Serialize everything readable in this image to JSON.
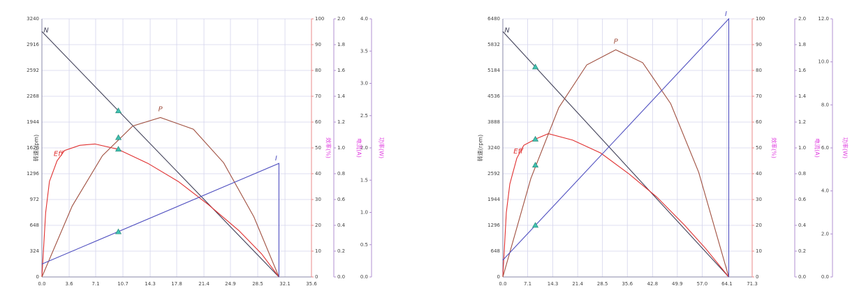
{
  "chart_data": [
    {
      "type": "line",
      "xlim": [
        0,
        35.6
      ],
      "xticks": [
        {
          "value": 0,
          "label": "0.0"
        },
        3.6,
        7.1,
        10.7,
        14.3,
        17.8,
        21.4,
        24.9,
        28.5,
        32.1,
        35.6
      ],
      "ylim": [
        0,
        3240
      ],
      "yticks": [
        0,
        324,
        648,
        972,
        1296,
        1620,
        1944,
        2268,
        2592,
        2916,
        3240
      ],
      "y2lim": [
        0,
        100
      ],
      "y2ticks": [
        0,
        10,
        20,
        30,
        40,
        50,
        60,
        70,
        80,
        90,
        100
      ],
      "y3lim": [
        0,
        2
      ],
      "y3ticks": [
        {
          "value": 0,
          "label": "0.0"
        },
        0.2,
        0.4,
        0.6,
        0.8,
        {
          "value": 1,
          "label": "1.0"
        },
        1.2,
        1.4,
        1.6,
        1.8,
        {
          "value": 2,
          "label": "2.0"
        }
      ],
      "y4lim": [
        0,
        4
      ],
      "y4ticks": [
        {
          "value": 0,
          "label": "0.0"
        },
        0.5,
        {
          "value": 1,
          "label": "1.0"
        },
        1.5,
        {
          "value": 2,
          "label": "2.0"
        },
        2.5,
        {
          "value": 3,
          "label": "3.0"
        },
        3.5,
        {
          "value": 4,
          "label": "4.0"
        }
      ],
      "ylabel": "转速(rpm)",
      "y2label": "效率(%)",
      "y3label": "电流(A)",
      "y4label": "功率(W)",
      "grid": true,
      "series": [
        {
          "name": "N",
          "color": "#404058",
          "axis": "y",
          "x": [
            0,
            31.3
          ],
          "values": [
            3080,
            0
          ],
          "marker": {
            "x": 10.1,
            "y": 2086
          }
        },
        {
          "name": "Eff",
          "color": "#e03030",
          "axis": "y2",
          "x": [
            0,
            0.5,
            1,
            2,
            3,
            5,
            7,
            10,
            14,
            18,
            22,
            26,
            29,
            31.3
          ],
          "values": [
            0,
            25,
            37,
            45,
            49,
            51,
            51.5,
            49.5,
            44,
            37,
            28,
            18,
            9,
            0
          ],
          "marker": {
            "x": 10.1,
            "y": 49.5
          }
        },
        {
          "name": "P",
          "color": "#a05040",
          "axis": "y4",
          "x": [
            0,
            4,
            8,
            12,
            15.65,
            20,
            24,
            28,
            31.3
          ],
          "values": [
            0,
            1.1,
            1.88,
            2.34,
            2.47,
            2.29,
            1.77,
            0.93,
            0
          ],
          "marker": {
            "x": 10.1,
            "y": 2.16
          }
        },
        {
          "name": "I",
          "color": "#5050c0",
          "axis": "y3",
          "x": [
            0,
            31.3,
            31.3
          ],
          "values": [
            0.1,
            0.88,
            0
          ],
          "marker": {
            "x": 10.1,
            "y": 0.35
          }
        }
      ]
    },
    {
      "type": "line",
      "xlim": [
        0,
        71.3
      ],
      "xticks": [
        {
          "value": 0,
          "label": "0.0"
        },
        7.1,
        14.3,
        21.4,
        28.5,
        35.6,
        42.8,
        49.9,
        {
          "value": 57,
          "label": "57.0"
        },
        64.1,
        71.3
      ],
      "ylim": [
        0,
        6480
      ],
      "yticks": [
        0,
        648,
        1296,
        1944,
        2592,
        3240,
        3888,
        4536,
        5184,
        5832,
        6480
      ],
      "y2lim": [
        0,
        100
      ],
      "y2ticks": [
        0,
        10,
        20,
        30,
        40,
        50,
        60,
        70,
        80,
        90,
        100
      ],
      "y3lim": [
        0,
        2
      ],
      "y3ticks": [
        {
          "value": 0,
          "label": "0.0"
        },
        0.2,
        0.4,
        0.6,
        0.8,
        {
          "value": 1,
          "label": "1.0"
        },
        1.2,
        1.4,
        1.6,
        1.8,
        {
          "value": 2,
          "label": "2.0"
        }
      ],
      "y4lim": [
        0,
        12
      ],
      "y4ticks": [
        {
          "value": 0,
          "label": "0.0"
        },
        {
          "value": 2,
          "label": "2.0"
        },
        {
          "value": 4,
          "label": "4.0"
        },
        {
          "value": 6,
          "label": "6.0"
        },
        {
          "value": 8,
          "label": "8.0"
        },
        {
          "value": 10,
          "label": "10.0"
        },
        {
          "value": 12,
          "label": "12.0"
        }
      ],
      "ylabel": "转速(rpm)",
      "y2label": "效率(%)",
      "y3label": "电流(A)",
      "y4label": "功率(W)",
      "grid": true,
      "series": [
        {
          "name": "N",
          "color": "#404058",
          "axis": "y",
          "x": [
            0,
            64.6
          ],
          "values": [
            6160,
            0
          ],
          "marker": {
            "x": 9.3,
            "y": 5273
          }
        },
        {
          "name": "Eff",
          "color": "#e03030",
          "axis": "y2",
          "x": [
            0,
            1,
            2,
            4,
            6,
            9.3,
            13,
            20,
            28,
            36,
            44,
            52,
            58,
            64.6
          ],
          "values": [
            0,
            25,
            36,
            46,
            51,
            53.4,
            55.5,
            53,
            48,
            40,
            31,
            20,
            11,
            0
          ],
          "marker": {
            "x": 9.3,
            "y": 53.4
          }
        },
        {
          "name": "P",
          "color": "#a05040",
          "axis": "y4",
          "x": [
            0,
            8,
            16,
            24,
            32.3,
            40,
            48,
            56,
            64.6
          ],
          "values": [
            0,
            4.58,
            7.87,
            9.86,
            10.56,
            9.96,
            8.06,
            4.87,
            0
          ],
          "marker": {
            "x": 9.3,
            "y": 5.2
          }
        },
        {
          "name": "I",
          "color": "#5050c0",
          "axis": "y3",
          "x": [
            0,
            64.6,
            64.6
          ],
          "values": [
            0.13,
            2,
            0
          ],
          "marker": {
            "x": 9.3,
            "y": 0.4
          }
        }
      ]
    }
  ]
}
